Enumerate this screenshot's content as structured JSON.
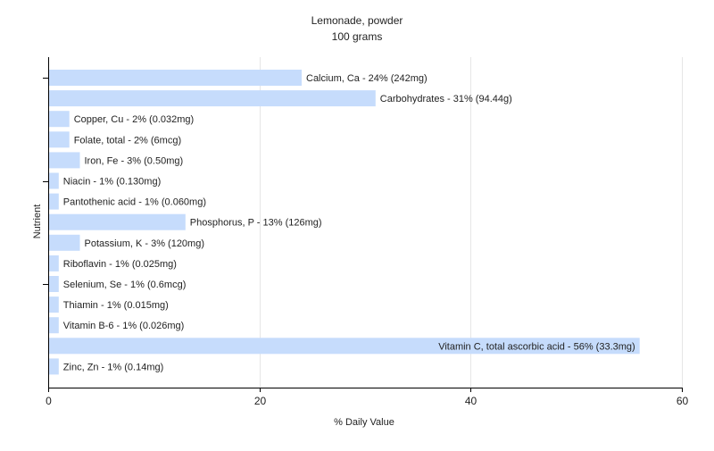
{
  "chart_data": {
    "type": "bar",
    "orientation": "horizontal",
    "title": "Lemonade, powder",
    "subtitle": "100 grams",
    "xlabel": "% Daily Value",
    "ylabel": "Nutrient",
    "xlim": [
      0,
      60
    ],
    "xticks": [
      0,
      20,
      40,
      60
    ],
    "grid": true,
    "bar_color": "#c6dcfc",
    "categories": [
      "Calcium, Ca",
      "Carbohydrates",
      "Copper, Cu",
      "Folate, total",
      "Iron, Fe",
      "Niacin",
      "Pantothenic acid",
      "Phosphorus, P",
      "Potassium, K",
      "Riboflavin",
      "Selenium, Se",
      "Thiamin",
      "Vitamin B-6",
      "Vitamin C, total ascorbic acid",
      "Zinc, Zn"
    ],
    "values": [
      24,
      31,
      2,
      2,
      3,
      1,
      1,
      13,
      3,
      1,
      1,
      1,
      1,
      56,
      1
    ],
    "labels": [
      "Calcium, Ca - 24% (242mg)",
      "Carbohydrates - 31% (94.44g)",
      "Copper, Cu - 2% (0.032mg)",
      "Folate, total - 2% (6mcg)",
      "Iron, Fe - 3% (0.50mg)",
      "Niacin - 1% (0.130mg)",
      "Pantothenic acid - 1% (0.060mg)",
      "Phosphorus, P - 13% (126mg)",
      "Potassium, K - 3% (120mg)",
      "Riboflavin - 1% (0.025mg)",
      "Selenium, Se - 1% (0.6mcg)",
      "Thiamin - 1% (0.015mg)",
      "Vitamin B-6 - 1% (0.026mg)",
      "Vitamin C, total ascorbic acid - 56% (33.3mg)",
      "Zinc, Zn - 1% (0.14mg)"
    ]
  }
}
